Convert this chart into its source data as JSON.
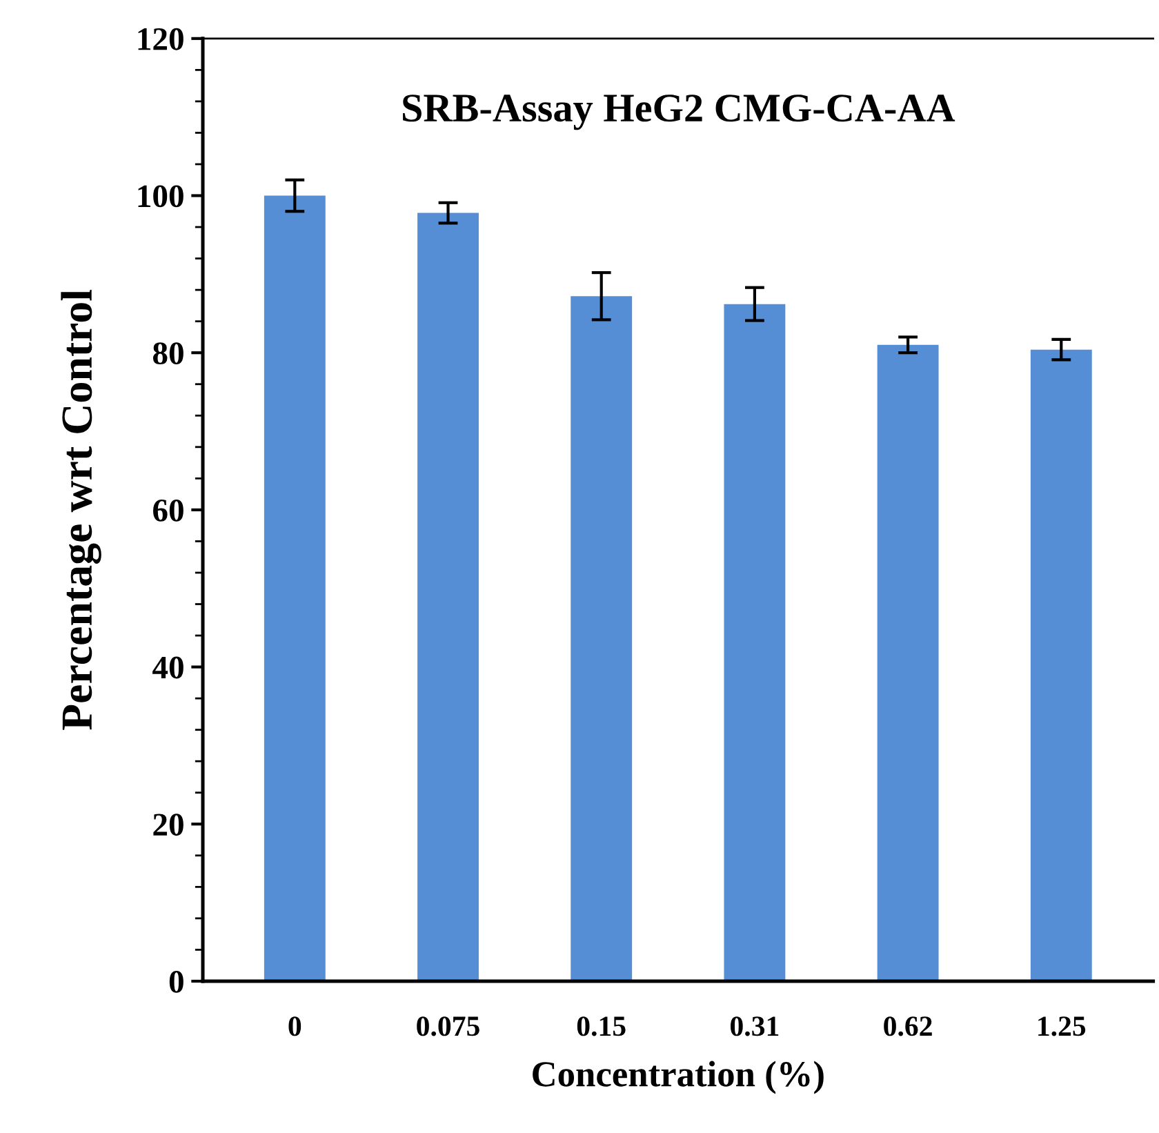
{
  "chart_data": {
    "type": "bar",
    "title": "SRB-Assay HeG2 CMG-CA-AA",
    "xlabel": "Concentration (%)",
    "ylabel": "Percentage wrt Control",
    "categories": [
      "0",
      "0.075",
      "0.15",
      "0.31",
      "0.62",
      "1.25"
    ],
    "values": [
      100,
      97.8,
      87.2,
      86.2,
      81.0,
      80.4
    ],
    "errors": [
      2.0,
      1.3,
      3.0,
      2.1,
      1.0,
      1.3
    ],
    "color": "#558ed5",
    "ylim": [
      0,
      120
    ],
    "yticks": [
      0,
      20,
      40,
      60,
      80,
      100,
      120
    ],
    "grid": false,
    "legend": false
  }
}
